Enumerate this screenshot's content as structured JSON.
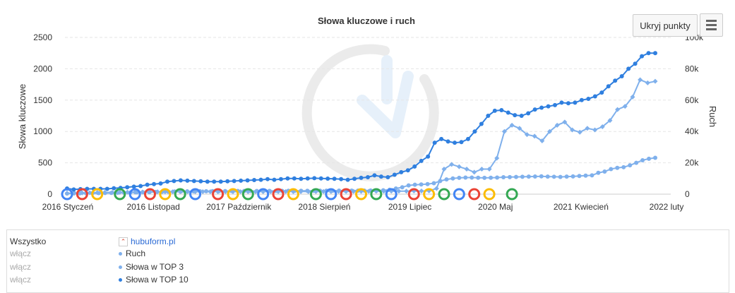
{
  "chart_data": {
    "type": "line",
    "title": "Słowa kluczowe i ruch",
    "ylabel_left": "Słowa kluczowe",
    "ylabel_right": "Ruch",
    "ylim_left": [
      0,
      2500
    ],
    "ylim_right": [
      0,
      100000
    ],
    "yticks_left": [
      "0",
      "500",
      "1000",
      "1500",
      "2000",
      "2500"
    ],
    "yticks_right": [
      "0",
      "20k",
      "40k",
      "60k",
      "80k",
      "100k"
    ],
    "x_tick_labels": [
      "2016 Styczeń",
      "2016 Listopad",
      "2017 Październik",
      "2018 Sierpień",
      "2019 Lipiec",
      "2020 Maj",
      "2021 Kwiecień",
      "2022 luty"
    ],
    "grid": true,
    "watermark": "logo",
    "series": [
      {
        "name": "Ruch",
        "axis": "right",
        "color": "#7fb0ec",
        "marker": "diamond",
        "values": [
          600,
          700,
          800,
          900,
          1000,
          1100,
          1150,
          1200,
          1250,
          1300,
          1400,
          1450,
          1500,
          1500,
          1500,
          1550,
          1550,
          1550,
          1600,
          1600,
          1600,
          1600,
          1600,
          1600,
          1600,
          1600,
          1600,
          1650,
          1650,
          1650,
          1650,
          1650,
          1650,
          1700,
          1700,
          1700,
          1750,
          1750,
          1750,
          1800,
          1800,
          1850,
          1850,
          1900,
          1900,
          1900,
          2000,
          2000,
          2100,
          3600,
          16000,
          19000,
          17500,
          16000,
          14000,
          16000,
          16000,
          23000,
          40000,
          44000,
          42000,
          38000,
          37000,
          34000,
          40000,
          44000,
          46000,
          41000,
          39500,
          42000,
          41000,
          43000,
          47000,
          54000,
          56000,
          62000,
          73000,
          71000,
          72000
        ]
      },
      {
        "name": "Słowa w TOP 3",
        "axis": "left",
        "color": "#7fb0ec",
        "marker": "circle",
        "values": [
          10,
          12,
          13,
          15,
          16,
          17,
          18,
          20,
          22,
          24,
          26,
          28,
          30,
          32,
          35,
          37,
          40,
          42,
          44,
          45,
          45,
          46,
          47,
          48,
          48,
          49,
          50,
          50,
          50,
          50,
          51,
          51,
          52,
          52,
          52,
          53,
          53,
          53,
          54,
          54,
          55,
          55,
          55,
          56,
          56,
          56,
          57,
          57,
          58,
          60,
          62,
          70,
          90,
          110,
          140,
          150,
          155,
          160,
          175,
          210,
          235,
          250,
          260,
          265,
          265,
          262,
          260,
          262,
          265,
          270,
          272,
          275,
          277,
          280,
          282,
          285,
          280,
          278,
          275,
          280,
          283,
          290,
          296,
          300,
          340,
          360,
          400,
          420,
          430,
          460,
          500,
          540,
          565,
          580
        ]
      },
      {
        "name": "Słowa w TOP 10",
        "axis": "left",
        "color": "#2f7fdf",
        "marker": "circle",
        "values": [
          90,
          75,
          80,
          85,
          85,
          85,
          85,
          95,
          100,
          110,
          120,
          130,
          150,
          160,
          170,
          200,
          210,
          220,
          215,
          210,
          205,
          200,
          200,
          200,
          205,
          210,
          215,
          220,
          225,
          230,
          240,
          230,
          240,
          250,
          250,
          245,
          250,
          255,
          250,
          248,
          245,
          240,
          230,
          245,
          260,
          270,
          300,
          280,
          270,
          310,
          350,
          380,
          440,
          530,
          600,
          820,
          880,
          840,
          820,
          830,
          880,
          1000,
          1120,
          1250,
          1330,
          1340,
          1300,
          1260,
          1250,
          1290,
          1350,
          1380,
          1400,
          1420,
          1460,
          1450,
          1460,
          1500,
          1520,
          1560,
          1620,
          1720,
          1810,
          1880,
          2000,
          2080,
          2200,
          2250,
          2250
        ]
      }
    ],
    "google_update_markers": 28
  },
  "toolbar": {
    "toggle_points_label": "Ukryj punkty",
    "menu_icon": "hamburger-icon"
  },
  "legend": {
    "header": "Wszystko",
    "site": "hubuform.pl",
    "rows": [
      {
        "toggle": "włącz",
        "series": "Ruch",
        "color": "#7fb0ec"
      },
      {
        "toggle": "włącz",
        "series": "Słowa w TOP 3",
        "color": "#7fb0ec"
      },
      {
        "toggle": "włącz",
        "series": "Słowa w TOP 10",
        "color": "#2f7fdf"
      }
    ]
  }
}
